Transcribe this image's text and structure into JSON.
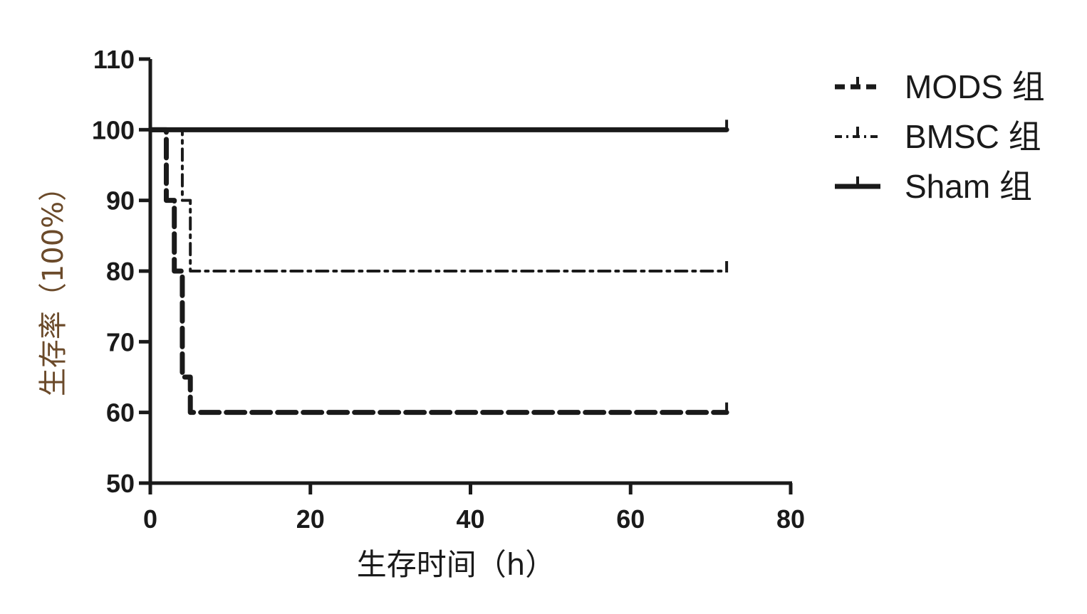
{
  "chart_data": {
    "type": "line",
    "subtype": "kaplan-meier step",
    "xlabel": "生存时间（h）",
    "ylabel": "生存率（100%）",
    "xlim": [
      0,
      80
    ],
    "ylim": [
      50,
      110
    ],
    "xticks": [
      "0",
      "20",
      "40",
      "60",
      "80"
    ],
    "yticks": [
      "50",
      "60",
      "70",
      "80",
      "90",
      "100",
      "110"
    ],
    "grid": false,
    "legend_position": "top-right",
    "series": [
      {
        "name": "MODS 组",
        "style": "thick-dashed",
        "steps": [
          [
            0,
            100
          ],
          [
            2,
            90
          ],
          [
            3,
            80
          ],
          [
            4,
            65
          ],
          [
            5,
            60
          ],
          [
            72,
            60
          ]
        ]
      },
      {
        "name": "BMSC 组",
        "style": "dash-dot",
        "steps": [
          [
            0,
            100
          ],
          [
            4,
            90
          ],
          [
            5,
            80
          ],
          [
            72,
            80
          ]
        ]
      },
      {
        "name": "Sham 组",
        "style": "solid",
        "steps": [
          [
            0,
            100
          ],
          [
            72,
            100
          ]
        ]
      }
    ],
    "colors": {
      "line": "#1a1a1a",
      "ylabel": "#6b4a2a"
    }
  }
}
